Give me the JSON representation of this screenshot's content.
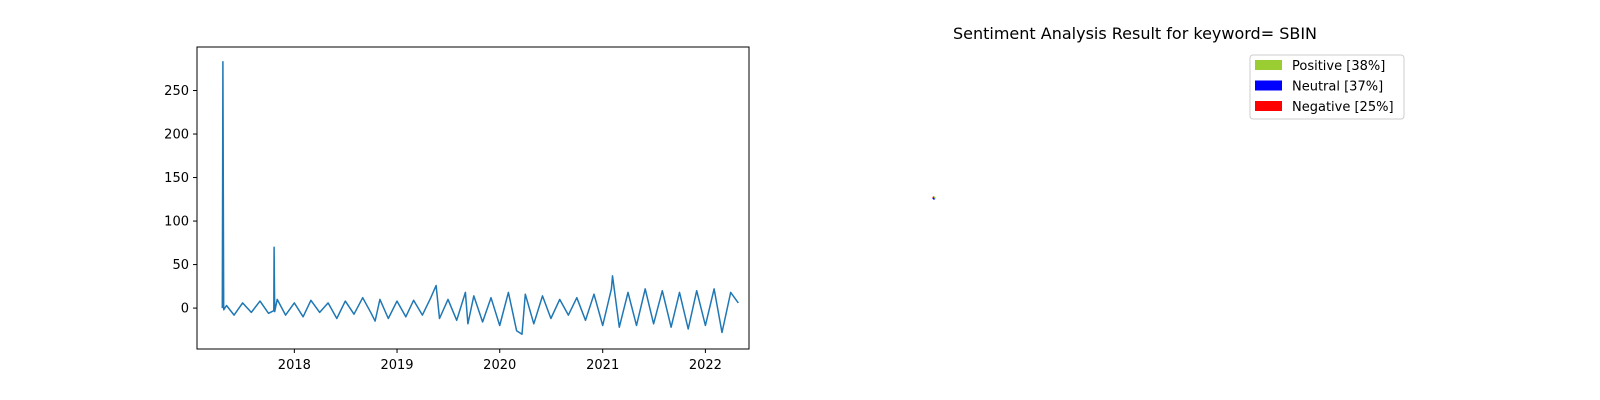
{
  "chart_data": [
    {
      "type": "line",
      "title": "",
      "xlabel": "",
      "ylabel": "",
      "xlim": [
        "2017-01-20",
        "2022-06-05"
      ],
      "ylim": [
        -47,
        300
      ],
      "xticks": [
        "2018",
        "2019",
        "2020",
        "2021",
        "2022"
      ],
      "yticks": [
        0,
        50,
        100,
        150,
        200,
        250
      ],
      "grid": false,
      "legend": "none",
      "color": "#1f77b4",
      "series": [
        {
          "x": [
            "2017-04-20",
            "2017-04-22",
            "2017-04-25",
            "2017-05-05",
            "2017-06-01",
            "2017-07-01",
            "2017-08-01",
            "2017-09-01",
            "2017-10-01",
            "2017-10-20",
            "2017-10-21",
            "2017-10-23",
            "2017-11-01",
            "2017-12-01",
            "2018-01-01",
            "2018-02-01",
            "2018-03-01",
            "2018-04-01",
            "2018-05-01",
            "2018-06-01",
            "2018-07-01",
            "2018-08-01",
            "2018-09-01",
            "2018-10-01",
            "2018-10-15",
            "2018-11-01",
            "2018-12-01",
            "2019-01-01",
            "2019-02-01",
            "2019-03-01",
            "2019-04-01",
            "2019-05-01",
            "2019-05-20",
            "2019-06-01",
            "2019-07-01",
            "2019-08-01",
            "2019-09-01",
            "2019-09-10",
            "2019-10-01",
            "2019-11-01",
            "2019-12-01",
            "2020-01-01",
            "2020-02-01",
            "2020-03-01",
            "2020-03-20",
            "2020-04-01",
            "2020-05-01",
            "2020-06-01",
            "2020-07-01",
            "2020-08-01",
            "2020-09-01",
            "2020-10-01",
            "2020-11-01",
            "2020-12-01",
            "2021-01-01",
            "2021-02-01",
            "2021-02-05",
            "2021-03-01",
            "2021-04-01",
            "2021-05-01",
            "2021-06-01",
            "2021-07-01",
            "2021-08-01",
            "2021-09-01",
            "2021-10-01",
            "2021-11-01",
            "2021-12-01",
            "2022-01-01",
            "2022-02-01",
            "2022-03-01",
            "2022-04-01",
            "2022-04-28"
          ],
          "y": [
            0,
            283,
            -2,
            3,
            -8,
            6,
            -5,
            8,
            -6,
            -3,
            70,
            -4,
            10,
            -8,
            6,
            -10,
            9,
            -5,
            6,
            -12,
            8,
            -7,
            12,
            -6,
            -15,
            10,
            -12,
            8,
            -10,
            9,
            -8,
            12,
            26,
            -12,
            10,
            -14,
            18,
            -18,
            14,
            -16,
            12,
            -20,
            18,
            -26,
            -30,
            16,
            -18,
            14,
            -12,
            10,
            -8,
            12,
            -14,
            16,
            -20,
            22,
            37,
            -22,
            18,
            -20,
            22,
            -18,
            20,
            -22,
            18,
            -24,
            20,
            -20,
            22,
            -28,
            18,
            6
          ]
        }
      ]
    },
    {
      "type": "pie",
      "title": "Sentiment Analysis Result for keyword= SBIN",
      "legend": "top-right",
      "categories": [
        "Positive [38%]",
        "Neutral [37%]",
        "Negative [25%]"
      ],
      "values": [
        38,
        37,
        25
      ],
      "colors": [
        "#9acd32",
        "#0000ff",
        "#ff0000"
      ]
    }
  ]
}
